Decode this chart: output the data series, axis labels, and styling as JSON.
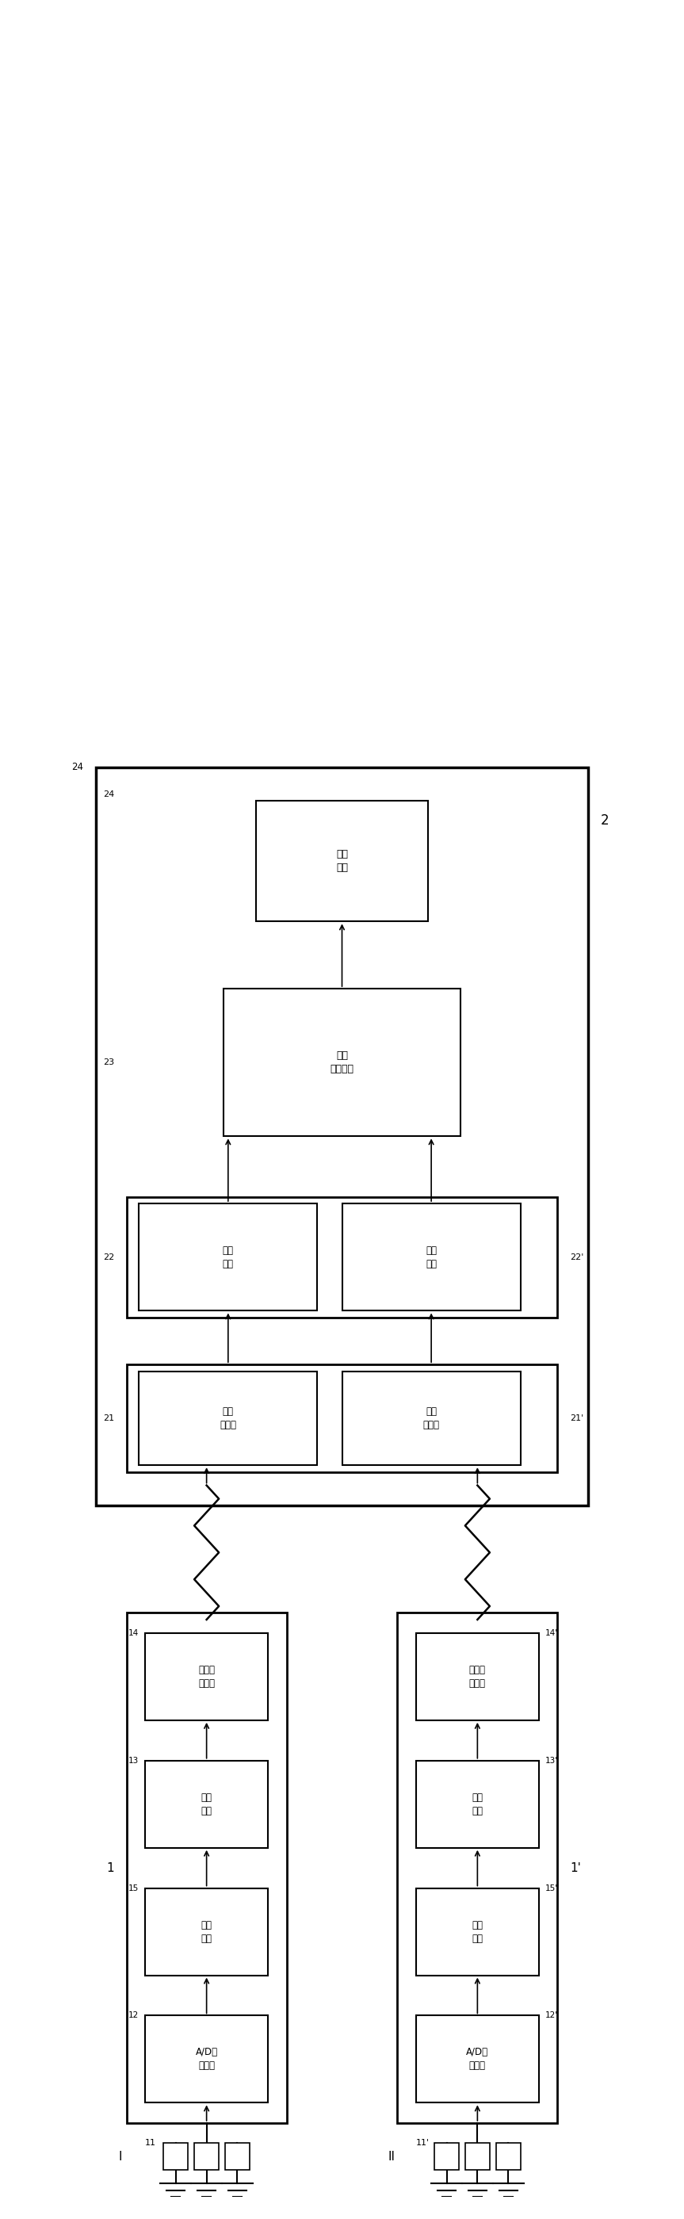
{
  "fig_width": 8.63,
  "fig_height": 27.99,
  "bg_color": "#ffffff",
  "line_color": "#000000",
  "labels": {
    "display_circuit": "显示\n电路",
    "signal_proc": "信号\n处理模块",
    "decode1": "解码\n电路",
    "decode2": "解码\n电路",
    "wireless_recv1": "无线\n收模块",
    "wireless_recv2": "无线\n收模块",
    "wireless_tx1": "无线频\n射模块",
    "wireless_tx2": "无线频\n射模块",
    "encode1": "编码\n电路",
    "encode2": "编码\n电路",
    "filter1": "滤波\n电路",
    "filter2": "滤波\n电路",
    "ad1": "A/D采\n样电路",
    "ad2": "A/D采\n样电路"
  }
}
